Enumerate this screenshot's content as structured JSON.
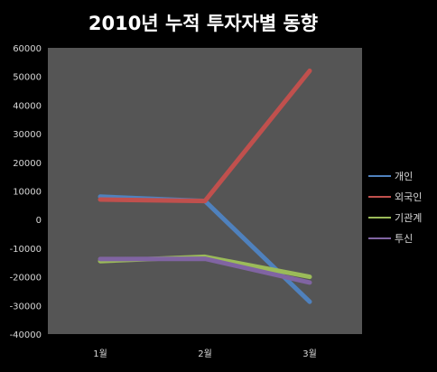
{
  "chart_data": {
    "type": "line",
    "title": "2010년 누적 투자자별 동향",
    "categories": [
      "1월",
      "2월",
      "3월"
    ],
    "series": [
      {
        "name": "개인",
        "color": "#4f81bd",
        "values": [
          8000,
          6500,
          -28700
        ]
      },
      {
        "name": "외국인",
        "color": "#c0504d",
        "values": [
          7000,
          6500,
          52000
        ]
      },
      {
        "name": "기관계",
        "color": "#9bbb59",
        "values": [
          -14500,
          -13000,
          -20000
        ]
      },
      {
        "name": "투신",
        "color": "#8064a2",
        "values": [
          -13800,
          -13700,
          -22000
        ]
      }
    ],
    "ylim": [
      -40000,
      60000
    ],
    "yticks": [
      "60000",
      "50000",
      "40000",
      "30000",
      "20000",
      "10000",
      "0",
      "-10000",
      "-20000",
      "-30000",
      "-40000"
    ],
    "grid": false,
    "legend_position": "right"
  }
}
